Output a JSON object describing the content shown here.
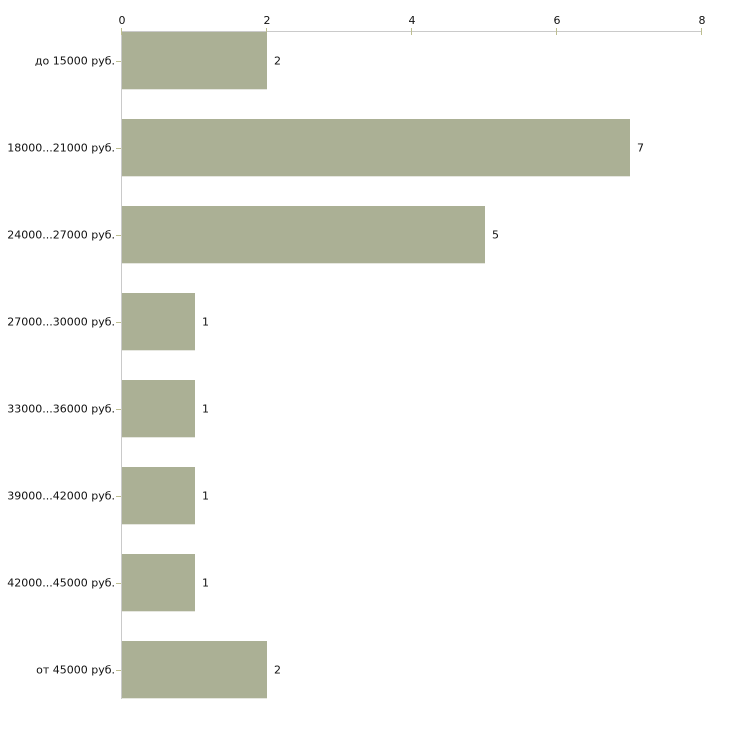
{
  "chart_data": {
    "type": "bar",
    "orientation": "horizontal",
    "title": "",
    "xlabel": "",
    "ylabel": "",
    "categories": [
      "до 15000 руб.",
      "18000...21000 руб.",
      "24000...27000 руб.",
      "27000...30000 руб.",
      "33000...36000 руб.",
      "39000...42000 руб.",
      "42000...45000 руб.",
      "от 45000 руб."
    ],
    "values": [
      2,
      7,
      5,
      1,
      1,
      1,
      1,
      2
    ],
    "bar_value_labels": [
      "2",
      "7",
      "5",
      "1",
      "1",
      "1",
      "1",
      "2"
    ],
    "x_ticks": [
      0,
      2,
      4,
      6,
      8
    ],
    "xlim": [
      0,
      8
    ],
    "axis_position": "top",
    "grid": false,
    "legend": false,
    "colors": {
      "background": "#FFFFFF",
      "bar_fill": "#ABB095",
      "bar_edge_light": "#E6E7E0",
      "axis_line": "#CACACA",
      "tick_mark": "#BDBE90",
      "text": "#111111"
    }
  }
}
